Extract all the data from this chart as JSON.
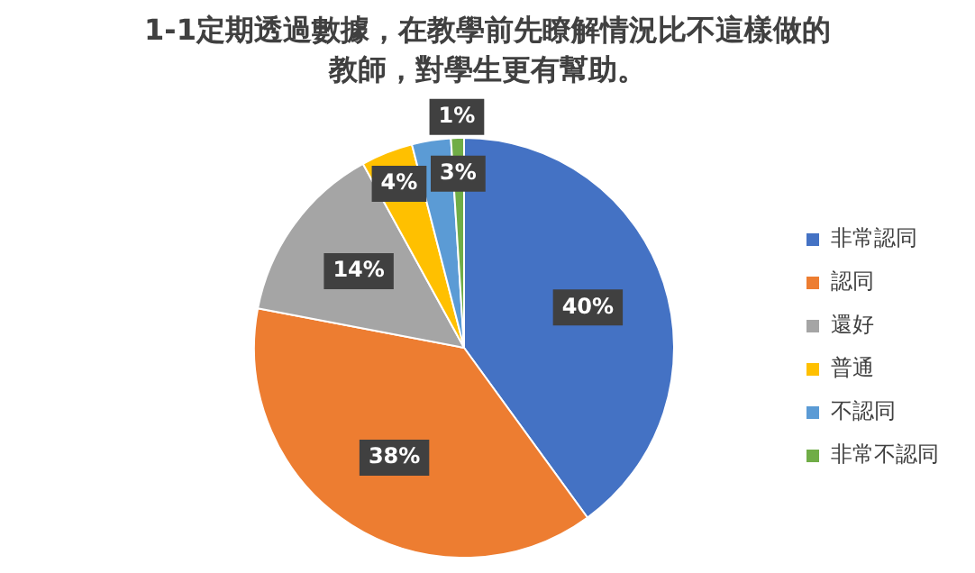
{
  "chart_data": {
    "type": "pie",
    "title": "1-1定期透過數據，在教學前先瞭解情況比不這樣做的教師，對學生更有幫助。",
    "categories": [
      "非常認同",
      "認同",
      "還好",
      "普通",
      "不認同",
      "非常不認同"
    ],
    "values": [
      40,
      38,
      14,
      4,
      3,
      1
    ],
    "colors": [
      "#4472c4",
      "#ed7d31",
      "#a5a5a5",
      "#ffc000",
      "#5b9bd5",
      "#70ad47"
    ],
    "value_labels": [
      "40%",
      "38%",
      "14%",
      "4%",
      "3%",
      "1%"
    ],
    "legend": "right"
  }
}
